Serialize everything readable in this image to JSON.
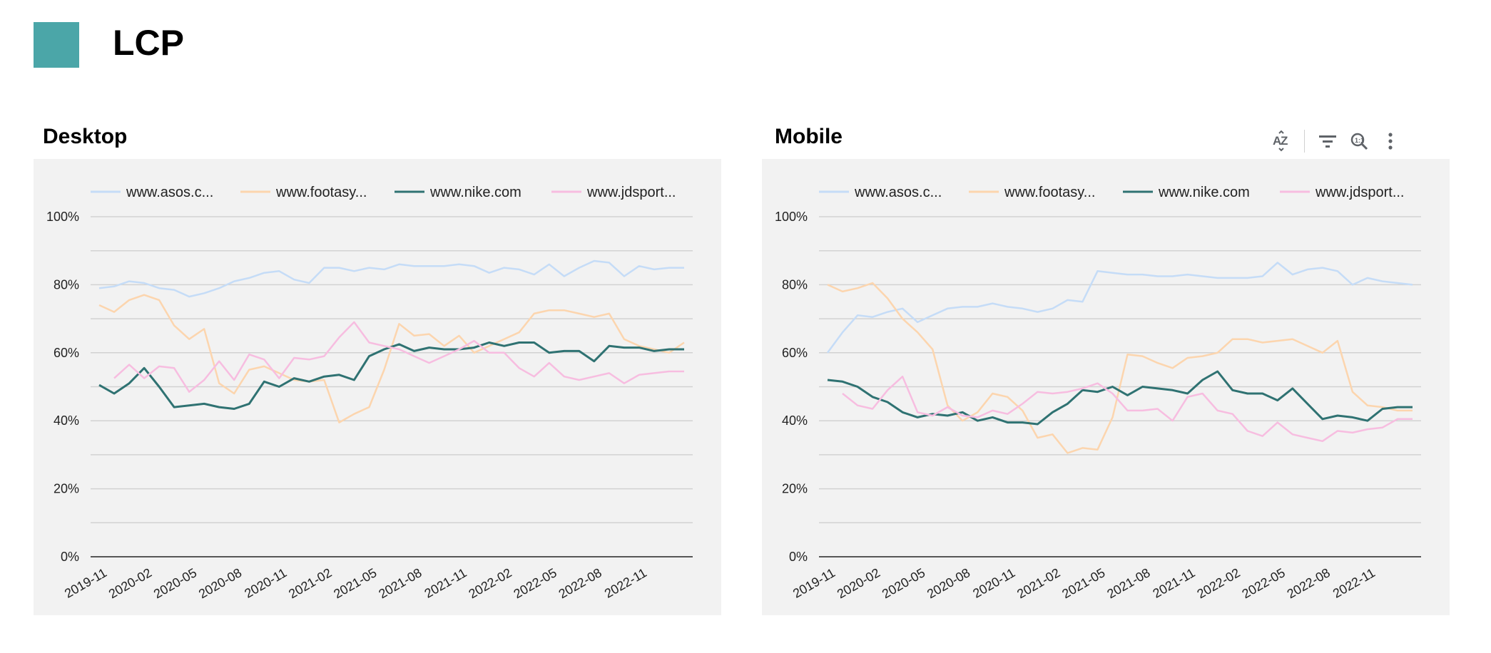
{
  "header": {
    "title": "LCP"
  },
  "toolbar": {
    "icons": [
      "sort-az-icon",
      "filter-icon",
      "zoom-icon",
      "more-vert-icon"
    ]
  },
  "colors": {
    "asos": "#c5dcf7",
    "footasylum": "#fcd5ae",
    "nike": "#2f7272",
    "jdsports": "#f7bde0",
    "logo": "#4ba6a8"
  },
  "chart_data": [
    {
      "type": "line",
      "title": "Desktop",
      "y_ticks": [
        "100%",
        "80%",
        "60%",
        "40%",
        "20%",
        "0%"
      ],
      "ylim": [
        0,
        100
      ],
      "x_tick_labels": [
        "2019-11",
        "2020-02",
        "2020-05",
        "2020-08",
        "2020-11",
        "2021-02",
        "2021-05",
        "2021-08",
        "2021-11",
        "2022-02",
        "2022-05",
        "2022-08",
        "2022-11"
      ],
      "x_count": 40,
      "legend_position": "top",
      "series": [
        {
          "name": "www.asos.c...",
          "color": "#c5dcf7",
          "start": 0,
          "values": [
            79,
            79.5,
            81,
            80.5,
            79,
            78.5,
            76.5,
            77.5,
            79,
            81,
            82,
            83.5,
            84,
            81.5,
            80.5,
            85,
            85,
            84,
            85,
            84.5,
            86,
            85.5,
            85.5,
            85.5,
            86,
            85.5,
            83.5,
            85,
            84.5,
            83,
            86,
            82.5,
            85,
            87,
            86.5,
            82.5,
            85.5,
            84.5,
            85,
            85
          ]
        },
        {
          "name": "www.footasy...",
          "color": "#fcd5ae",
          "start": 0,
          "values": [
            74,
            72,
            75.5,
            77,
            75.5,
            68,
            64,
            67,
            51,
            48,
            55,
            56,
            54,
            52,
            51.5,
            52,
            39.5,
            42,
            44,
            55,
            68.5,
            65,
            65.5,
            62,
            65,
            60,
            62,
            64,
            66,
            71.5,
            72.5,
            72.5,
            71.5,
            70.5,
            71.5,
            64,
            62,
            61,
            60,
            63
          ]
        },
        {
          "name": "www.nike.com",
          "color": "#2f7272",
          "start": 0,
          "values": [
            50.5,
            48,
            51,
            55.5,
            50,
            44,
            44.5,
            45,
            44,
            43.5,
            45,
            51.5,
            50,
            52.5,
            51.5,
            53,
            53.5,
            52,
            59,
            61,
            62.5,
            60.5,
            61.5,
            61,
            61,
            61.5,
            63,
            62,
            63,
            63,
            60,
            60.5,
            60.5,
            57.5,
            62,
            61.5,
            61.5,
            60.5,
            61,
            61
          ]
        },
        {
          "name": "www.jdsport...",
          "color": "#f7bde0",
          "start": 1,
          "values": [
            52.5,
            56.5,
            52.5,
            56,
            55.5,
            48.5,
            52,
            57.5,
            52,
            59.5,
            58,
            52.5,
            58.5,
            58,
            59,
            64.5,
            69,
            63,
            62,
            61,
            59,
            57,
            59,
            61,
            63.5,
            60,
            60,
            55.5,
            53,
            57,
            53,
            52,
            53,
            54,
            51,
            53.5,
            54,
            54.5,
            54.5
          ]
        }
      ]
    },
    {
      "type": "line",
      "title": "Mobile",
      "y_ticks": [
        "100%",
        "80%",
        "60%",
        "40%",
        "20%",
        "0%"
      ],
      "ylim": [
        0,
        100
      ],
      "x_tick_labels": [
        "2019-11",
        "2020-02",
        "2020-05",
        "2020-08",
        "2020-11",
        "2021-02",
        "2021-05",
        "2021-08",
        "2021-11",
        "2022-02",
        "2022-05",
        "2022-08",
        "2022-11"
      ],
      "x_count": 40,
      "legend_position": "top",
      "series": [
        {
          "name": "www.asos.c...",
          "color": "#c5dcf7",
          "start": 0,
          "values": [
            60,
            66,
            71,
            70.5,
            72,
            73,
            69,
            71,
            73,
            73.5,
            73.5,
            74.5,
            73.5,
            73,
            72,
            73,
            75.5,
            75,
            84,
            83.5,
            83,
            83,
            82.5,
            82.5,
            83,
            82.5,
            82,
            82,
            82,
            82.5,
            86.5,
            83,
            84.5,
            85,
            84,
            80,
            82,
            81,
            80.5,
            80
          ]
        },
        {
          "name": "www.footasy...",
          "color": "#fcd5ae",
          "start": 0,
          "values": [
            80,
            78,
            79,
            80.5,
            76,
            70,
            66,
            61,
            44.5,
            40,
            42.5,
            48,
            47,
            43,
            35,
            36,
            30.5,
            32,
            31.5,
            41,
            59.5,
            59,
            57,
            55.5,
            58.5,
            59,
            60,
            64,
            64,
            63,
            63.5,
            64,
            62,
            60,
            63.5,
            48.5,
            44.5,
            44,
            43,
            43
          ]
        },
        {
          "name": "www.nike.com",
          "color": "#2f7272",
          "start": 0,
          "values": [
            52,
            51.5,
            50,
            47,
            45.5,
            42.5,
            41,
            42,
            41.5,
            42.5,
            40,
            41,
            39.5,
            39.5,
            39,
            42.5,
            45,
            49,
            48.5,
            50,
            47.5,
            50,
            49.5,
            49,
            48,
            52,
            54.5,
            49,
            48,
            48,
            46,
            49.5,
            45,
            40.5,
            41.5,
            41,
            40,
            43.5,
            44,
            44
          ]
        },
        {
          "name": "www.jdsport...",
          "color": "#f7bde0",
          "start": 1,
          "values": [
            48,
            44.5,
            43.5,
            49,
            53,
            42.5,
            41.5,
            44,
            41.5,
            41,
            43,
            42,
            45,
            48.5,
            48,
            48.5,
            49.5,
            51,
            48,
            43,
            43,
            43.5,
            40,
            47,
            48,
            43,
            42,
            37,
            35.5,
            39.5,
            36,
            35,
            34,
            37,
            36.5,
            37.5,
            38,
            40.5,
            40.5
          ]
        }
      ]
    }
  ]
}
